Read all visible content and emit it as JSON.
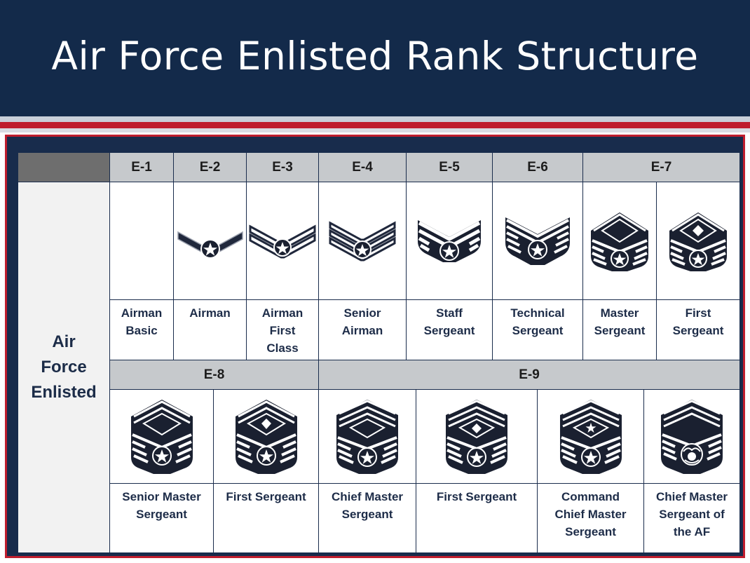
{
  "title": "Air Force Enlisted Rank Structure",
  "side_label": [
    "Air",
    "Force",
    "Enlisted"
  ],
  "row1": {
    "grades": [
      {
        "label": "E-1"
      },
      {
        "label": "E-2"
      },
      {
        "label": "E-3"
      },
      {
        "label": "E-4"
      },
      {
        "label": "E-5"
      },
      {
        "label": "E-6"
      },
      {
        "label": "E-7"
      }
    ],
    "ranks": [
      {
        "lines": [
          "Airman",
          "Basic"
        ],
        "insignia": "none-icon"
      },
      {
        "lines": [
          "Airman"
        ],
        "insignia": "airman-chevron-icon"
      },
      {
        "lines": [
          "Airman",
          "First",
          "Class"
        ],
        "insignia": "airman-first-class-chevron-icon"
      },
      {
        "lines": [
          "Senior",
          "Airman"
        ],
        "insignia": "senior-airman-chevron-icon"
      },
      {
        "lines": [
          "Staff",
          "Sergeant"
        ],
        "insignia": "staff-sergeant-chevron-icon"
      },
      {
        "lines": [
          "Technical",
          "Sergeant"
        ],
        "insignia": "technical-sergeant-chevron-icon"
      },
      {
        "lines": [
          "Master",
          "Sergeant"
        ],
        "insignia": "master-sergeant-chevron-icon"
      },
      {
        "lines": [
          "First",
          "Sergeant"
        ],
        "insignia": "first-sergeant-chevron-icon"
      }
    ]
  },
  "row2": {
    "grades": [
      {
        "label": "E-8"
      },
      {
        "label": "E-9"
      }
    ],
    "ranks": [
      {
        "lines": [
          "Senior Master",
          "Sergeant"
        ],
        "insignia": "senior-master-sergeant-chevron-icon"
      },
      {
        "lines": [
          "First Sergeant"
        ],
        "insignia": "first-sergeant-e8-chevron-icon"
      },
      {
        "lines": [
          "Chief Master",
          "Sergeant"
        ],
        "insignia": "chief-master-sergeant-chevron-icon"
      },
      {
        "lines": [
          "First Sergeant"
        ],
        "insignia": "first-sergeant-e9-chevron-icon"
      },
      {
        "lines": [
          "Command",
          "Chief Master",
          "Sergeant"
        ],
        "insignia": "command-chief-master-sergeant-chevron-icon"
      },
      {
        "lines": [
          "Chief Master",
          "Sergeant of",
          "the AF"
        ],
        "insignia": "chief-master-sergeant-of-the-af-chevron-icon"
      }
    ]
  },
  "colors": {
    "header_bg": "#132a4a",
    "accent_red": "#bf1e2e",
    "grade_header_bg": "#c6c9cc",
    "label_text": "#1d2c48"
  }
}
